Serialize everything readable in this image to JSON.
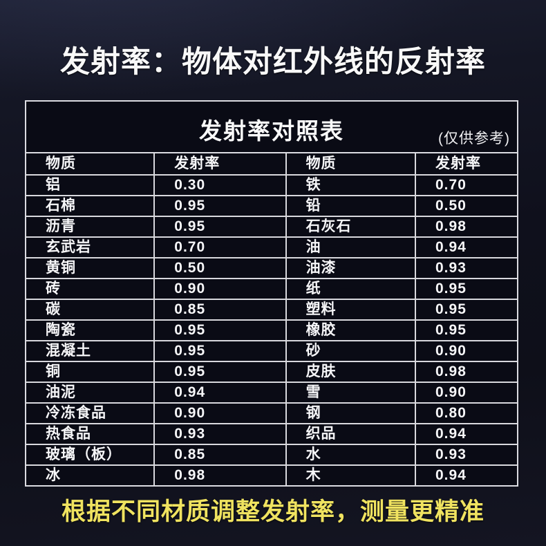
{
  "page_title": "发射率：物体对红外线的反射率",
  "footer_note": "根据不同材质调整发射率，测量更精准",
  "chart_data": {
    "type": "table",
    "title": "发射率对照表",
    "subtitle": "(仅供参考)",
    "columns": [
      "物质",
      "发射率",
      "物质",
      "发射率"
    ],
    "rows": [
      {
        "material_left": "铝",
        "emissivity_left": "0.30",
        "material_right": "铁",
        "emissivity_right": "0.70"
      },
      {
        "material_left": "石棉",
        "emissivity_left": "0.95",
        "material_right": "铅",
        "emissivity_right": "0.50"
      },
      {
        "material_left": "沥青",
        "emissivity_left": "0.95",
        "material_right": "石灰石",
        "emissivity_right": "0.98"
      },
      {
        "material_left": "玄武岩",
        "emissivity_left": "0.70",
        "material_right": "油",
        "emissivity_right": "0.94"
      },
      {
        "material_left": "黄铜",
        "emissivity_left": "0.50",
        "material_right": "油漆",
        "emissivity_right": "0.93"
      },
      {
        "material_left": "砖",
        "emissivity_left": "0.90",
        "material_right": "纸",
        "emissivity_right": "0.95"
      },
      {
        "material_left": "碳",
        "emissivity_left": "0.85",
        "material_right": "塑料",
        "emissivity_right": "0.95"
      },
      {
        "material_left": "陶瓷",
        "emissivity_left": "0.95",
        "material_right": "橡胶",
        "emissivity_right": "0.95"
      },
      {
        "material_left": "混凝土",
        "emissivity_left": "0.95",
        "material_right": "砂",
        "emissivity_right": "0.90"
      },
      {
        "material_left": "铜",
        "emissivity_left": "0.95",
        "material_right": "皮肤",
        "emissivity_right": "0.98"
      },
      {
        "material_left": "油泥",
        "emissivity_left": "0.94",
        "material_right": "雪",
        "emissivity_right": "0.90"
      },
      {
        "material_left": "冷冻食品",
        "emissivity_left": "0.90",
        "material_right": "钢",
        "emissivity_right": "0.80"
      },
      {
        "material_left": "热食品",
        "emissivity_left": "0.93",
        "material_right": "织品",
        "emissivity_right": "0.94"
      },
      {
        "material_left": "玻璃（板）",
        "emissivity_left": "0.85",
        "material_right": "水",
        "emissivity_right": "0.93"
      },
      {
        "material_left": "冰",
        "emissivity_left": "0.98",
        "material_right": "木",
        "emissivity_right": "0.94"
      }
    ]
  },
  "colors": {
    "background": "#12131f",
    "table_background": "#0a0b15",
    "table_border": "#d9d9de",
    "text": "#f6f6f8",
    "accent_yellow": "#f0e360"
  }
}
